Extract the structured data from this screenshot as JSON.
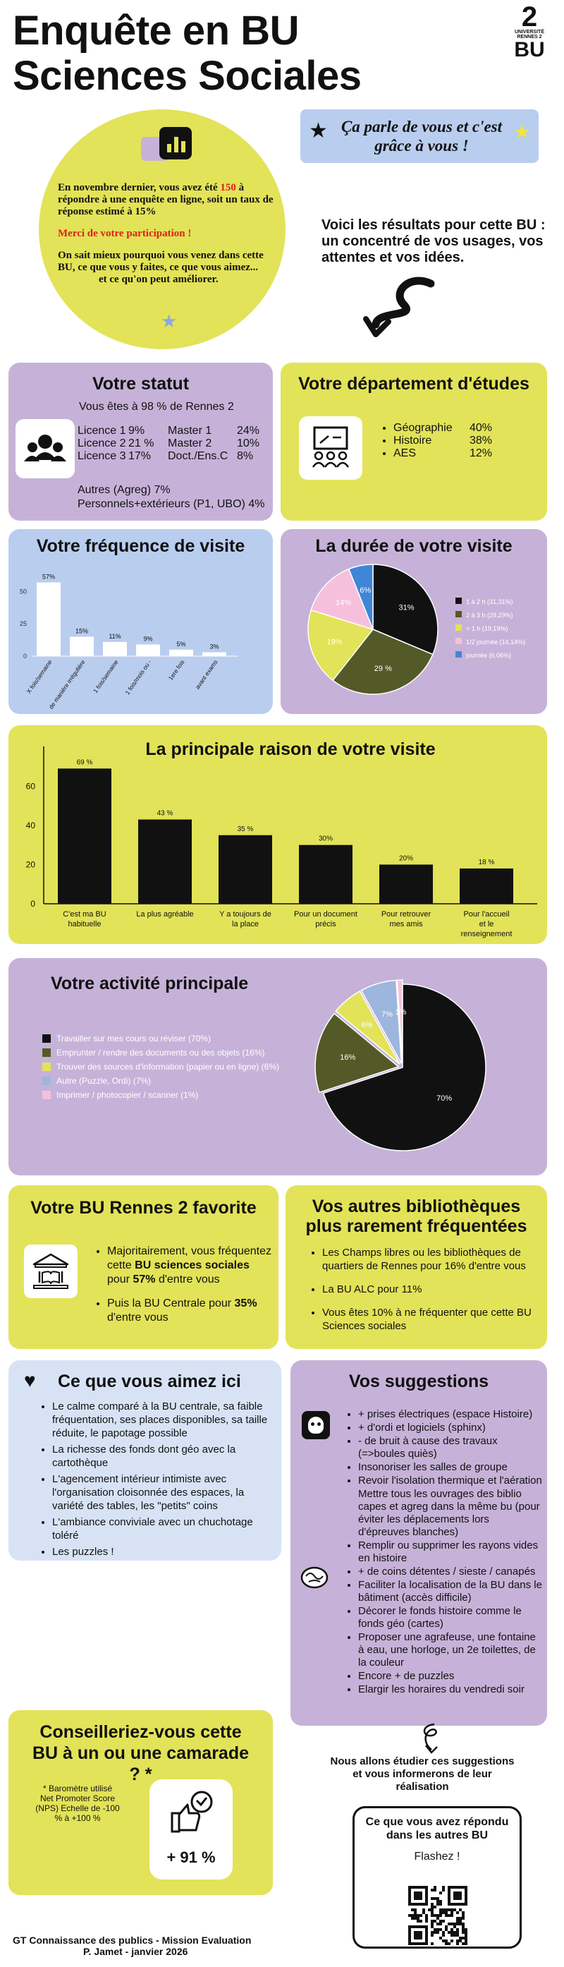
{
  "header": {
    "title_line1": "Enquête en BU",
    "title_line2": "Sciences Sociales",
    "logo_number": "2",
    "logo_university": "UNIVERSITÉ",
    "logo_city": "RENNES 2",
    "logo_bu": "BU"
  },
  "intro": {
    "text_before": "En novembre dernier, vous avez été ",
    "highlight_count": "150",
    "text_after": " à répondre à une enquête en ligne, soit un taux de réponse estimé à 15%",
    "thanks": "Merci de votre participation !",
    "para2": "On sait mieux pourquoi vous venez dans cette BU, ce que vous y faites, ce que vous aimez...",
    "para3": "et ce qu'on peut améliorer.",
    "banner": "Ça parle de vous et c'est grâce à vous !",
    "results": "Voici les résultats pour cette BU : un concentré de vos usages, vos attentes et vos idées."
  },
  "statut": {
    "title": "Votre statut",
    "subtitle": "Vous êtes à 98 % de Rennes 2",
    "rows": [
      {
        "a": "Licence 1",
        "av": "9%",
        "b": "Master 1",
        "bv": "24%"
      },
      {
        "a": "Licence 2",
        "av": "21 %",
        "b": "Master 2",
        "bv": "10%"
      },
      {
        "a": "Licence 3",
        "av": "17%",
        "b": "Doct./Ens.C",
        "bv": "8%"
      }
    ],
    "other1": "Autres (Agreg)  7%",
    "other2": "Personnels+extérieurs (P1, UBO) 4%"
  },
  "departement": {
    "title": "Votre département d'études",
    "items": [
      {
        "label": "Géographie",
        "value": "40%"
      },
      {
        "label": "Histoire",
        "value": "38%"
      },
      {
        "label": "AES",
        "value": "12%"
      }
    ]
  },
  "frequence": {
    "title": "Votre fréquence de visite",
    "chart_data": {
      "type": "bar",
      "categories": [
        "X fois/semaine",
        "de manière irrégulière",
        "1 fois/semaine",
        "1 fois/mois ou -",
        "1ere fois",
        "avant exams"
      ],
      "values": [
        57,
        15,
        11,
        9,
        5,
        3
      ],
      "labels": [
        "57%",
        "15%",
        "11%",
        "9%",
        "5%",
        "3%"
      ],
      "ylim": [
        0,
        60
      ],
      "ticks": [
        "0",
        "25",
        "50"
      ]
    }
  },
  "duree": {
    "title": "La durée de votre visite",
    "chart_data": {
      "type": "pie",
      "values": [
        31.31,
        29.29,
        19.19,
        14.14,
        6.06
      ],
      "labels": [
        "31%",
        "29 %",
        "19%",
        "14%",
        "6%"
      ],
      "legend": [
        "1 à 2 h (31,31%)",
        "2 à 3 h (29,29%)",
        "< 1 h (19,19%)",
        "1/2 journée (14,14%)",
        "journée (6,06%)"
      ],
      "colors": [
        "#111111",
        "#545a27",
        "#e2e358",
        "#f6c0dc",
        "#3f86d6"
      ]
    }
  },
  "raison": {
    "title": "La principale raison de votre visite",
    "chart_data": {
      "type": "bar",
      "categories": [
        "C'est ma BU habituelle",
        "La plus agréable",
        "Y a toujours de la place",
        "Pour un document précis",
        "Pour retrouver mes amis",
        "Pour l'accueil et le renseignement"
      ],
      "values": [
        69,
        43,
        35,
        30,
        20,
        18
      ],
      "labels": [
        "69 %",
        "43 %",
        "35 %",
        "30%",
        "20%",
        "18 %"
      ],
      "ylim": [
        0,
        70
      ],
      "ticks": [
        "0",
        "20",
        "40",
        "60"
      ]
    }
  },
  "activite": {
    "title": "Votre activité principale",
    "chart_data": {
      "type": "pie",
      "values": [
        70,
        16,
        6,
        7,
        1
      ],
      "labels": [
        "70%",
        "16%",
        "6%",
        "7%",
        "1%"
      ],
      "legend": [
        "Travailler sur mes cours ou réviser (70%)",
        "Emprunter / rendre des documents ou des objets (16%)",
        "Trouver des sources d'information (papier ou en ligne) (6%)",
        "Autre (Puzzle, Ordi) (7%)",
        "Imprimer / photocopier / scanner (1%)"
      ],
      "colors": [
        "#111111",
        "#545a27",
        "#e2e358",
        "#9db6dd",
        "#f6c0dc"
      ]
    }
  },
  "favorite": {
    "title": "Votre BU Rennes 2 favorite",
    "b1_pre": "Majoritairement, vous fréquentez cette ",
    "b1_bold": "BU sciences sociales",
    "b1_mid": " pour ",
    "b1_pct": "57%",
    "b1_post": " d'entre vous",
    "b2_pre": "Puis la BU Centrale pour ",
    "b2_pct": "35%",
    "b2_post": " d'entre vous"
  },
  "autres": {
    "title": "Vos autres bibliothèques plus rarement fréquentées",
    "items": [
      "Les Champs libres ou les bibliothèques de quartiers de Rennes pour 16% d'entre vous",
      "La BU ALC pour 11%",
      "Vous êtes 10% à ne fréquenter que cette BU Sciences sociales"
    ]
  },
  "aimez": {
    "title": "Ce que vous aimez ici",
    "items": [
      "Le calme comparé à la BU centrale,  sa faible fréquentation, ses places disponibles, sa taille réduite, le papotage possible",
      "La richesse des fonds dont géo avec la cartothèque",
      "L'agencement intérieur intimiste avec l'organisation cloisonnée des espaces, la variété des tables,  les \"petits\" coins",
      "L'ambiance conviviale avec un chuchotage toléré",
      "Les puzzles !"
    ]
  },
  "suggestions": {
    "title": "Vos suggestions",
    "items": [
      "+ prises électriques (espace Histoire)",
      "+ d'ordi et logiciels (sphinx)",
      "- de bruit à cause des travaux (=>boules quiès)",
      "Insonoriser les salles de groupe",
      "Revoir l'isolation thermique et l'aération",
      "Mettre tous les ouvrages des biblio capes et agreg dans la même bu (pour éviter les déplacements lors d'épreuves blanches)",
      "Remplir ou supprimer les rayons vides en histoire",
      "+ de coins détentes / sieste / canapés",
      "Faciliter la localisation de la BU dans le bâtiment  (accès difficile)",
      "Décorer le fonds histoire comme le fonds géo (cartes)",
      "Proposer une agrafeuse, une fontaine à eau, une horloge, un 2e toilettes, de la couleur",
      "Encore + de puzzles",
      "Elargir les horaires du vendredi soir"
    ],
    "bulleted": [
      true,
      true,
      true,
      true,
      true,
      false,
      true,
      true,
      true,
      true,
      true,
      true,
      true
    ]
  },
  "nps": {
    "title": "Conseilleriez-vous cette BU à un ou une camarade ? *",
    "note": "* Baromètre utilisé Net Promoter Score (NPS) Echelle de -100 % à +100 %",
    "score": "+ 91 %"
  },
  "etude": "Nous allons étudier ces suggestions et vous informerons de leur réalisation",
  "qr": {
    "title": "Ce que vous avez répondu dans les autres BU",
    "cta": "Flashez !"
  },
  "footer": {
    "line1": "GT Connaissance des publics - Mission Evaluation",
    "line2": "P. Jamet  - janvier 2026"
  },
  "colors": {
    "purple": "#c6b2d8",
    "yellow": "#e2e358",
    "blue": "#b9cdef",
    "accent_red": "#e0201b",
    "star_blue": "#8fa8dd",
    "star_yellow": "#f2e43a"
  }
}
